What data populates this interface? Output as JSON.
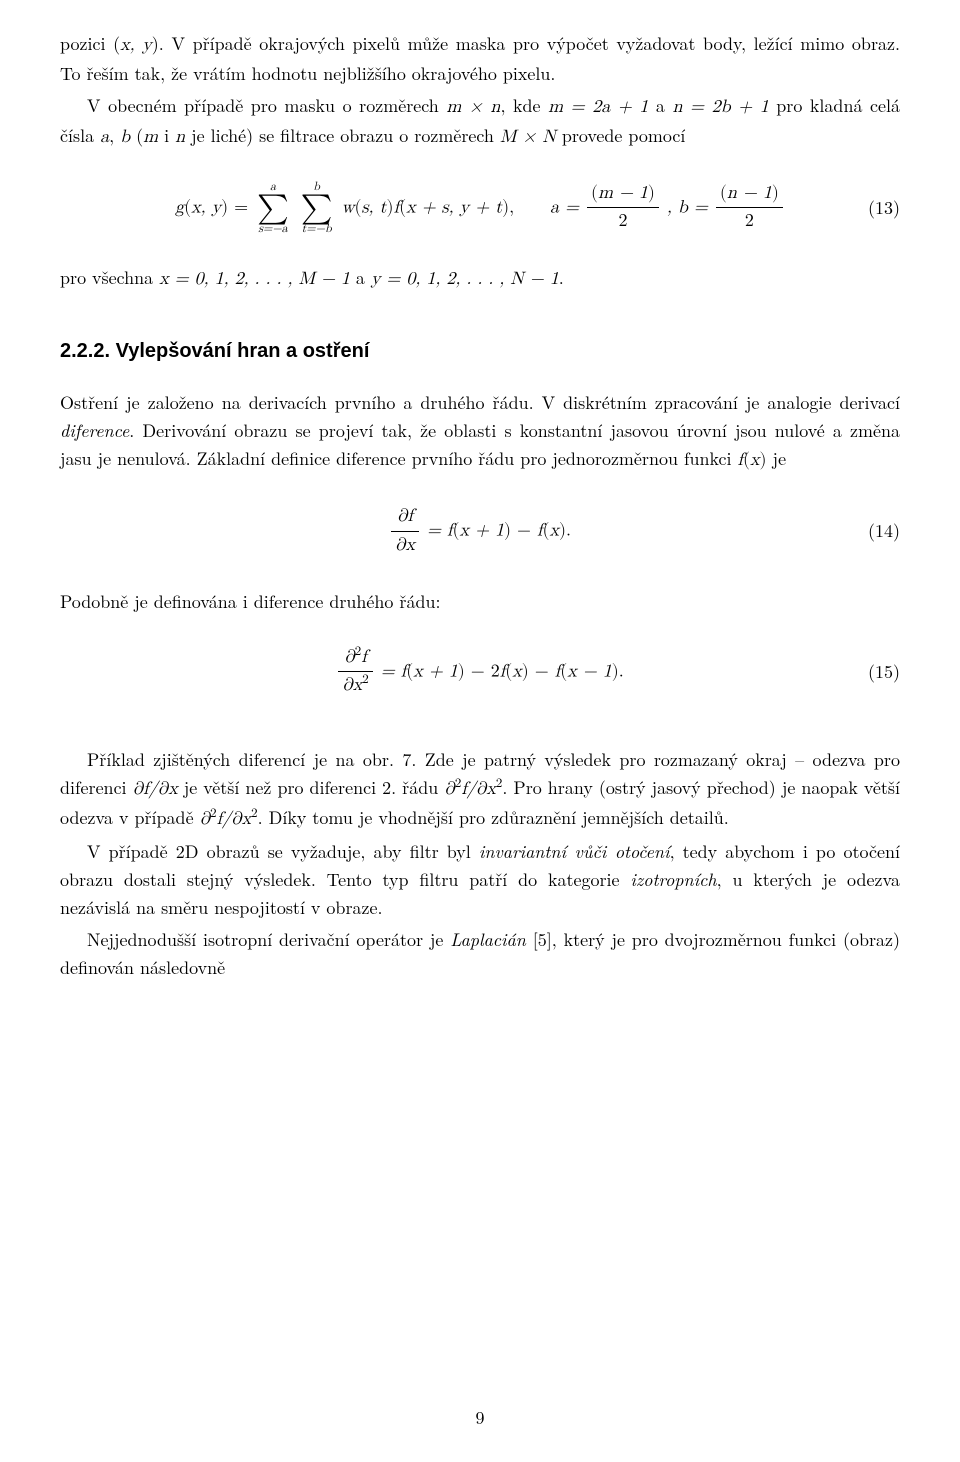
{
  "para1a": "pozici (",
  "para1a_xy": "x, y",
  "para1b": "). V případě okrajových pixelů může maska pro výpočet vyžadovat body, ležící mimo obraz. To řeším tak, že vrátím hodnotu nejbližšího okrajového pixelu.",
  "para2a": "V obecném případě pro masku o rozměrech ",
  "para2_mxn": "m × n",
  "para2b": ", kde ",
  "para2_m": "m = 2a + 1",
  "para2c": " a ",
  "para2_n": "n = 2b + 1",
  "para2d": " pro kladná celá čísla ",
  "para2_ab": "a",
  "para2d2": ", ",
  "para2_b": "b",
  "para2e": " (",
  "para2_mi": "m",
  "para2f": " i ",
  "para2_ni": "n",
  "para2g": " je liché) se filtrace obrazu o rozměrech ",
  "para2_MN": "M × N",
  "para2h": " provede pomocí",
  "eq13": {
    "lhs_g": "g",
    "lhs_open": "(",
    "lhs_xy": "x, y",
    "lhs_close": ") = ",
    "sum1_top": "a",
    "sum1_bot": "s=−a",
    "sum2_top": "b",
    "sum2_bot": "t=−b",
    "w": "w",
    "w_open": "(",
    "w_args": "s, t",
    "w_close": ")",
    "f": "f",
    "f_open": "(",
    "f_args": "x + s, y + t",
    "f_close": "),",
    "gap": "    ",
    "a_eq": "a = ",
    "frac_a_top_open": "(",
    "frac_a_top": "m − 1",
    "frac_a_top_close": ")",
    "frac_a_bot": "2",
    "comma_b": ", b = ",
    "frac_b_top_open": "(",
    "frac_b_top": "n − 1",
    "frac_b_top_close": ")",
    "frac_b_bot": "2",
    "number": "(13)"
  },
  "para3a": "pro všechna ",
  "para3_x": "x = 0, 1, 2, . . . , M − 1",
  "para3b": " a ",
  "para3_y": "y = 0, 1, 2, . . . , N − 1",
  "para3c": ".",
  "section": "2.2.2.  Vylepšování hran a ostření",
  "para4a": "Ostření je založeno na derivacích prvního a druhého řádu. V diskrétním zpracování je analogie derivací ",
  "para4_em": "diference",
  "para4b": ". Derivování obrazu se projeví tak, že oblasti s konstantní jasovou úrovní jsou nulové a změna jasu je nenulová. Základní definice diference prvního řádu pro jednorozměrnou funkci ",
  "para4_fx": "f",
  "para4_fx_open": "(",
  "para4_fx_arg": "x",
  "para4_fx_close": ")",
  "para4c": " je",
  "eq14": {
    "frac_top": "∂f",
    "frac_bot": "∂x",
    "rhs": " = f",
    "rhs_open1": "(",
    "rhs_x1": "x + 1",
    "rhs_close1": ") − ",
    "rhs_f2": "f",
    "rhs_open2": "(",
    "rhs_x2": "x",
    "rhs_close2": ").",
    "number": "(14)"
  },
  "para5": "Podobně je definována i diference druhého řádu:",
  "eq15": {
    "frac_top_d": "∂",
    "frac_top_sup": "2",
    "frac_top_f": "f",
    "frac_bot_d": "∂x",
    "frac_bot_sup": "2",
    "rhs": " = f",
    "rhs_open1": "(",
    "rhs_x1": "x + 1",
    "rhs_close1": ") − 2",
    "rhs_f2": "f",
    "rhs_open2": "(",
    "rhs_x2": "x",
    "rhs_close2": ") − ",
    "rhs_f3": "f",
    "rhs_open3": "(",
    "rhs_x3": "x − 1",
    "rhs_close3": ").",
    "number": "(15)"
  },
  "para6a": "Příklad zjištěných diferencí je na obr. 7. Zde je patrný výsledek pro rozmazaný okraj – odezva pro diferenci ",
  "para6_d1": "∂f/∂x",
  "para6b": " je větší než pro diferenci 2. řádu ",
  "para6_d2a": "∂",
  "para6_d2_sup1": "2",
  "para6_d2b": "f/∂x",
  "para6_d2_sup2": "2",
  "para6c": ". Pro hrany (ostrý jasový přechod) je naopak větší odezva v případě ",
  "para6_d3a": "∂",
  "para6_d3_sup1": "2",
  "para6_d3b": "f/∂x",
  "para6_d3_sup2": "2",
  "para6d": ". Díky tomu je vhodnější pro zdůraznění jemnějších detailů.",
  "para7a": "V případě 2D obrazů se vyžaduje, aby filtr byl ",
  "para7_em1": "invariantní vůči otočení",
  "para7b": ", tedy abychom i po otočení obrazu dostali stejný výsledek. Tento typ filtru patří do kategorie ",
  "para7_em2": "izotropních",
  "para7c": ", u kterých je odezva nezávislá na směru nespojitostí v obraze.",
  "para8a": "Nejjednodušší isotropní derivační operátor je ",
  "para8_em": "Laplacián",
  "para8b": " [5], který je pro dvojrozměrnou funkci (obraz) definován následovně",
  "pagenum": "9"
}
